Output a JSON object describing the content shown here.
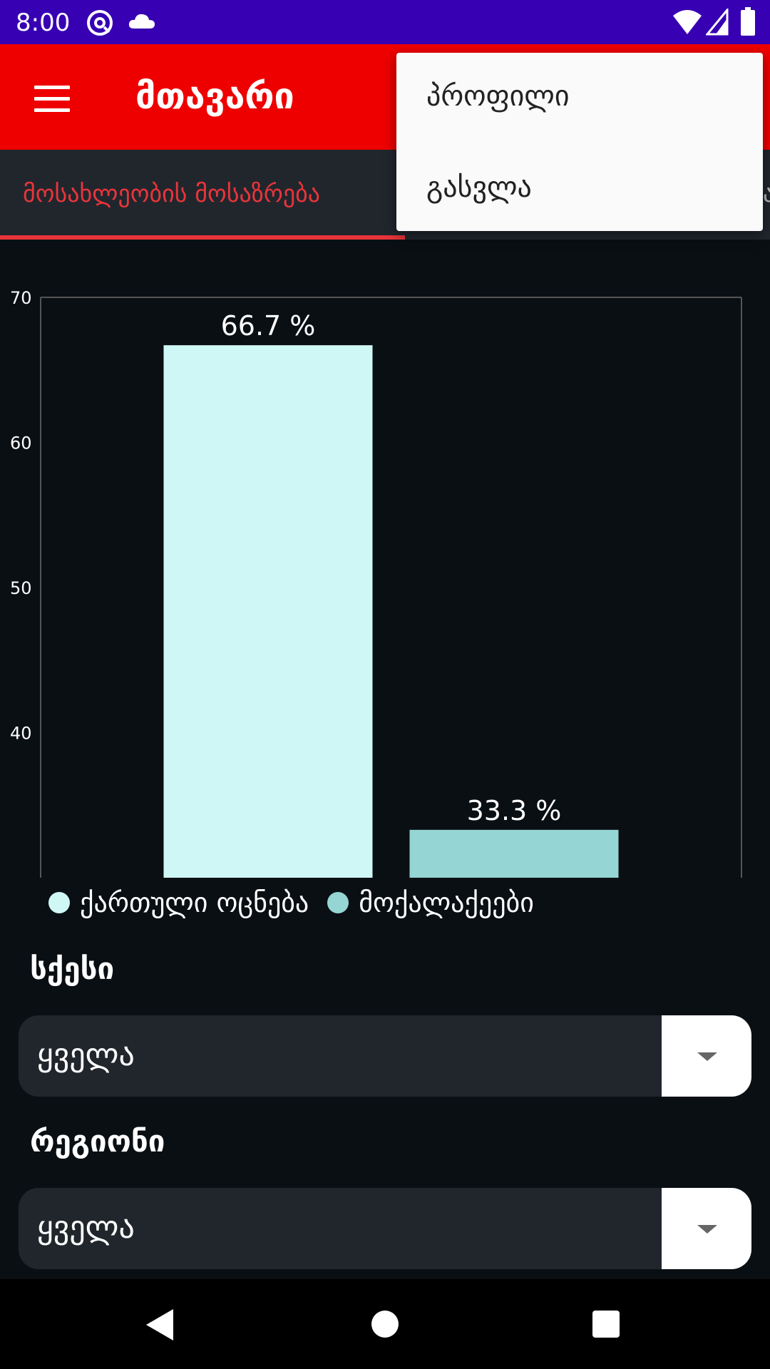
{
  "status_bar": {
    "time": "8:00",
    "icons": [
      "at-sign-icon",
      "cloud-icon",
      "wifi-icon",
      "signal-icon",
      "battery-icon"
    ]
  },
  "app_bar": {
    "title": "მთავარი",
    "menu_icon": "hamburger-menu-icon"
  },
  "tabs": [
    {
      "label": "მოსახლეობის მოსაზრება",
      "active": true
    },
    {
      "label": "ა",
      "active": false
    }
  ],
  "overflow_menu": {
    "items": [
      "პროფილი",
      "გასვლა"
    ]
  },
  "chart_data": {
    "type": "bar",
    "categories": [
      "ქართული ოცნება",
      "მოქალაქეები"
    ],
    "values": [
      66.7,
      33.3
    ],
    "value_labels": [
      "66.7 %",
      "33.3 %"
    ],
    "colors": [
      "#cff7f5",
      "#95d5d4"
    ],
    "ylim": [
      30,
      70
    ],
    "yticks": [
      40,
      50,
      60,
      70
    ],
    "ytick_labels": [
      "40",
      "50",
      "60",
      "70"
    ],
    "title": "",
    "xlabel": "",
    "ylabel": "",
    "legend": {
      "position": "bottom-left",
      "entries": [
        "ქართული ოცნება",
        "მოქალაქეები"
      ]
    }
  },
  "filters": {
    "gender": {
      "label": "სქესი",
      "value": "ყველა"
    },
    "region": {
      "label": "რეგიონი",
      "value": "ყველა"
    }
  },
  "nav_bar": {
    "buttons": [
      "back-icon",
      "home-icon",
      "recents-icon"
    ]
  },
  "colors": {
    "status_bar": "#3700b3",
    "app_bar": "#ee0000",
    "accent": "#e8353b",
    "background": "#0a0f14"
  }
}
